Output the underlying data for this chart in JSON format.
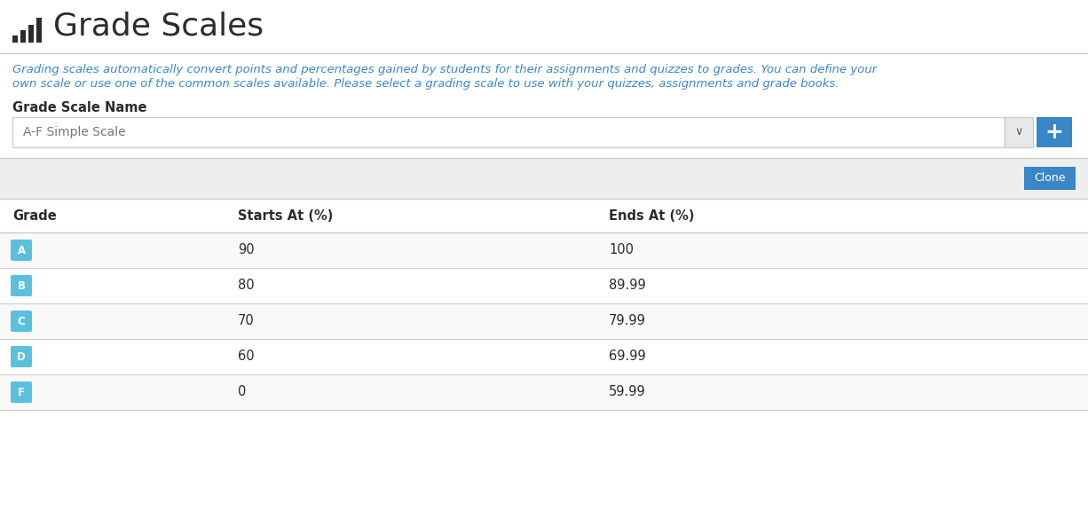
{
  "title": "Grade Scales",
  "subtitle_line1": "Grading scales automatically convert points and percentages gained by students for their assignments and quizzes to grades. You can define your",
  "subtitle_line2": "own scale or use one of the common scales available. Please select a grading scale to use with your quizzes, assignments and grade books.",
  "label_grade_scale_name": "Grade Scale Name",
  "dropdown_text": "A-F Simple Scale",
  "clone_button_text": "Clone",
  "plus_button_text": "+",
  "col_headers": [
    "Grade",
    "Starts At (%)",
    "Ends At (%)"
  ],
  "grades": [
    "A",
    "B",
    "C",
    "D",
    "F"
  ],
  "starts_at": [
    "90",
    "80",
    "70",
    "60",
    "0"
  ],
  "ends_at": [
    "100",
    "89.99",
    "79.99",
    "69.99",
    "59.99"
  ],
  "bg_color": "#ffffff",
  "row_bg_even": "#f9f9f9",
  "row_bg_odd": "#ffffff",
  "grade_badge_color": "#5bc0de",
  "title_color": "#2c2c2c",
  "subtitle_color": "#3a87c8",
  "button_blue": "#3a87c8",
  "clone_bar_bg": "#eeeeee",
  "dropdown_border": "#cccccc",
  "text_color": "#2c2c2c",
  "divider_color": "#cccccc",
  "title_fontsize": 26,
  "subtitle_fontsize": 9.5,
  "label_fontsize": 10.5,
  "dropdown_fontsize": 10,
  "header_fontsize": 10.5,
  "row_fontsize": 10.5,
  "badge_fontsize": 8.5,
  "icon_color": "#2c2c2c"
}
